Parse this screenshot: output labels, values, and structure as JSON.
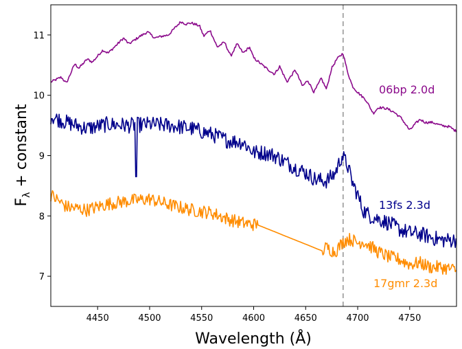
{
  "chart_data": {
    "type": "line",
    "xlabel": "Wavelength (Å)",
    "ylabel": "F_λ + constant",
    "xlim": [
      4405,
      4795
    ],
    "ylim": [
      6.5,
      11.5
    ],
    "xticks": [
      4450,
      4500,
      4550,
      4600,
      4650,
      4700,
      4750
    ],
    "yticks": [
      7,
      8,
      9,
      10,
      11
    ],
    "vline": {
      "x": 4686,
      "color": "#aaaaaa",
      "style": "dashed"
    },
    "grid": false,
    "legend": "none",
    "series": [
      {
        "name": "06bp 2.0d",
        "color": "#8b0a8b",
        "noise": 0.02,
        "x": [
          4405,
          4415,
          4420,
          4428,
          4432,
          4440,
          4445,
          4455,
          4460,
          4465,
          4475,
          4480,
          4490,
          4498,
          4505,
          4512,
          4518,
          4525,
          4530,
          4535,
          4540,
          4548,
          4552,
          4558,
          4565,
          4572,
          4578,
          4584,
          4590,
          4596,
          4600,
          4605,
          4612,
          4620,
          4625,
          4632,
          4640,
          4647,
          4652,
          4658,
          4665,
          4670,
          4675,
          4680,
          4686,
          4690,
          4695,
          4700,
          4708,
          4715,
          4720,
          4728,
          4735,
          4742,
          4750,
          4755,
          4760,
          4765,
          4772,
          4780,
          4788,
          4795
        ],
        "y": [
          10.22,
          10.3,
          10.2,
          10.52,
          10.45,
          10.6,
          10.55,
          10.75,
          10.7,
          10.78,
          10.95,
          10.85,
          10.97,
          11.05,
          10.95,
          10.98,
          11.0,
          11.13,
          11.22,
          11.18,
          11.2,
          11.15,
          10.98,
          11.08,
          10.8,
          10.88,
          10.65,
          10.85,
          10.7,
          10.8,
          10.62,
          10.55,
          10.45,
          10.35,
          10.48,
          10.22,
          10.42,
          10.15,
          10.25,
          10.05,
          10.28,
          10.1,
          10.45,
          10.6,
          10.7,
          10.4,
          10.15,
          10.05,
          9.92,
          9.7,
          9.8,
          9.78,
          9.72,
          9.62,
          9.42,
          9.52,
          9.6,
          9.55,
          9.55,
          9.5,
          9.48,
          9.4
        ]
      },
      {
        "name": "13fs 2.3d",
        "color": "#00008b",
        "noise": 0.13,
        "dip": {
          "x": 4487,
          "y": 8.65
        },
        "x": [
          4405,
          4420,
          4440,
          4460,
          4480,
          4500,
          4520,
          4540,
          4560,
          4575,
          4590,
          4600,
          4610,
          4620,
          4630,
          4640,
          4650,
          4660,
          4670,
          4678,
          4685,
          4690,
          4695,
          4700,
          4705,
          4712,
          4720,
          4730,
          4740,
          4750,
          4760,
          4770,
          4780,
          4795
        ],
        "y": [
          9.65,
          9.55,
          9.45,
          9.52,
          9.5,
          9.52,
          9.5,
          9.45,
          9.35,
          9.25,
          9.22,
          9.05,
          9.05,
          9.0,
          8.9,
          8.8,
          8.72,
          8.6,
          8.58,
          8.7,
          9.0,
          8.85,
          8.55,
          8.35,
          8.1,
          8.0,
          7.95,
          7.88,
          7.78,
          7.72,
          7.7,
          7.65,
          7.6,
          7.6
        ]
      },
      {
        "name": "17gmr 2.3d",
        "color": "#ff8c00",
        "noise": 0.11,
        "gap": [
          4604,
          4666
        ],
        "x": [
          4405,
          4420,
          4440,
          4460,
          4480,
          4500,
          4520,
          4540,
          4560,
          4575,
          4590,
          4604,
          4666,
          4670,
          4678,
          4685,
          4690,
          4695,
          4700,
          4705,
          4712,
          4720,
          4730,
          4740,
          4750,
          4760,
          4770,
          4780,
          4795
        ],
        "y": [
          8.35,
          8.15,
          8.1,
          8.2,
          8.25,
          8.28,
          8.18,
          8.1,
          8.05,
          7.95,
          7.88,
          7.85,
          7.42,
          7.48,
          7.4,
          7.55,
          7.62,
          7.6,
          7.55,
          7.58,
          7.5,
          7.4,
          7.32,
          7.28,
          7.2,
          7.22,
          7.15,
          7.15,
          7.1
        ]
      }
    ]
  }
}
